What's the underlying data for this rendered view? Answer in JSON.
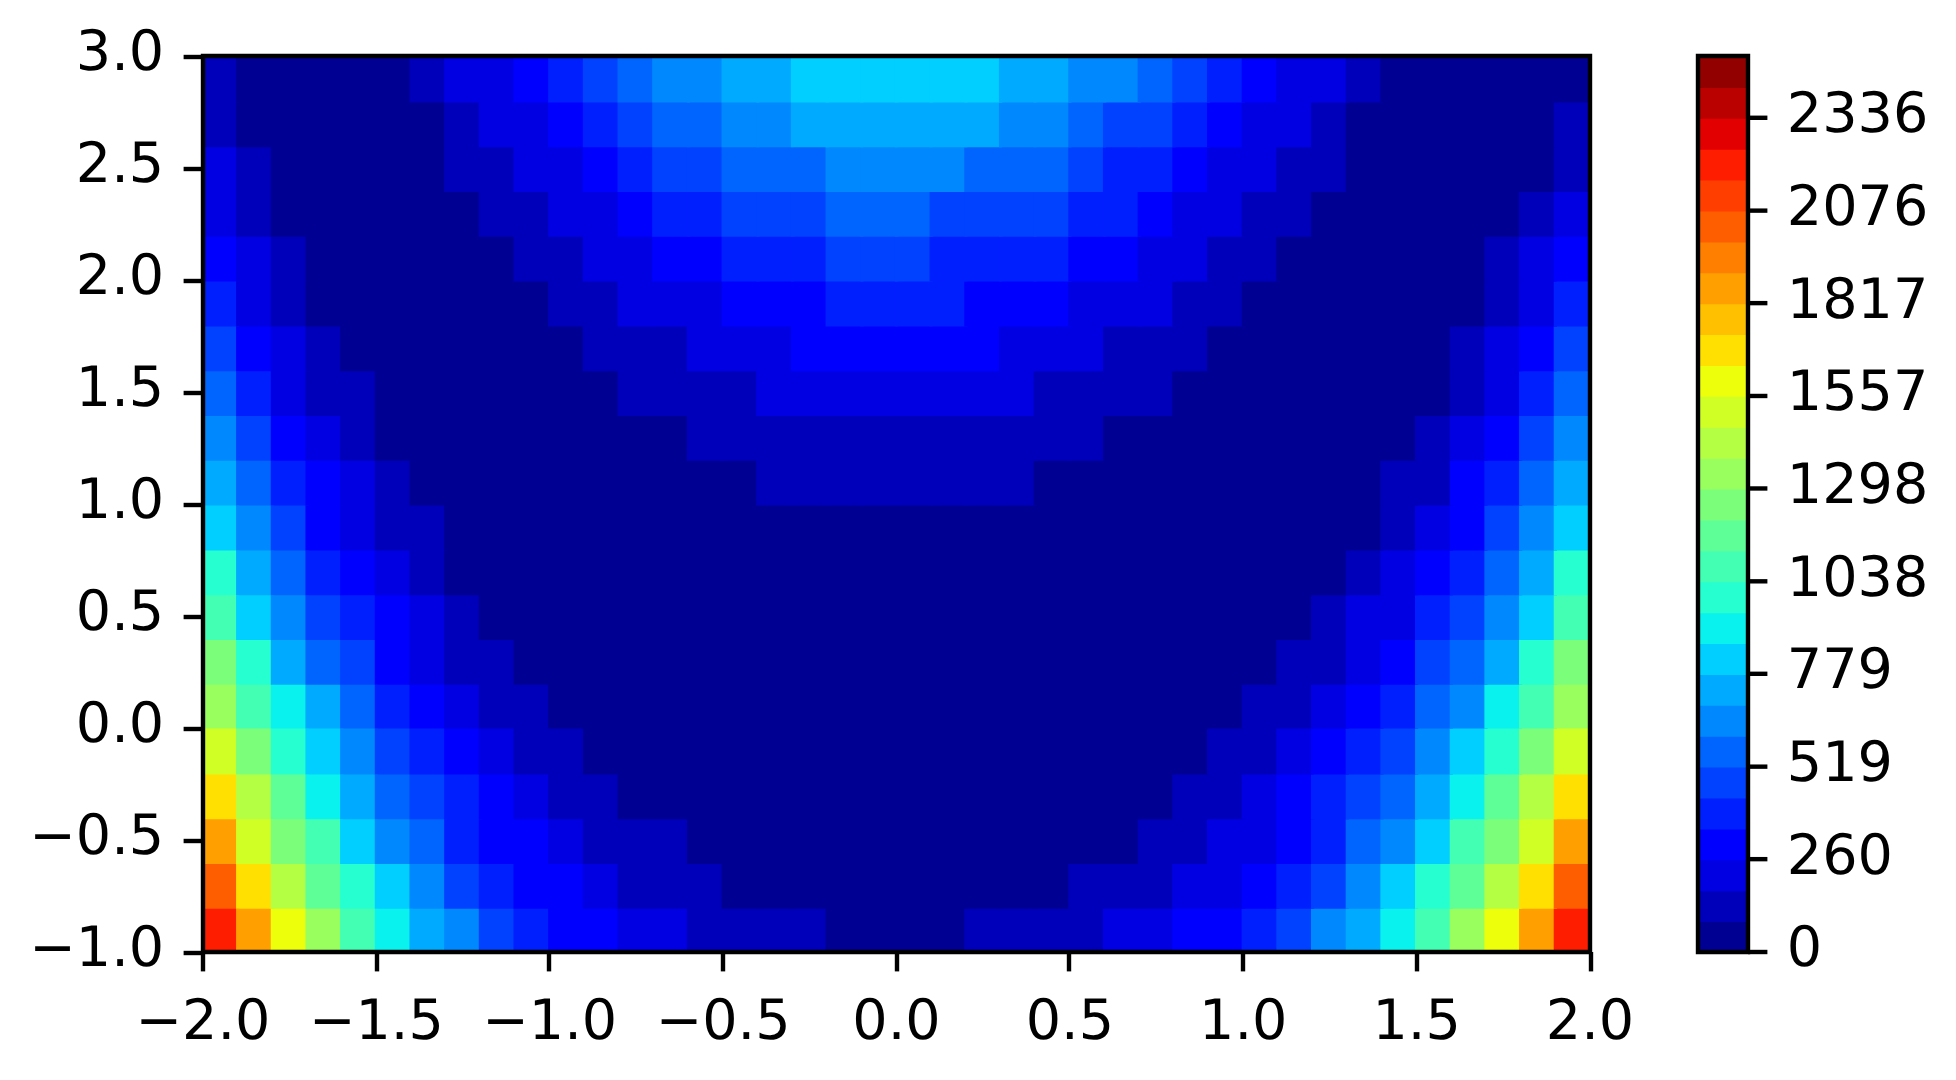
{
  "chart_data": {
    "type": "heatmap",
    "cells": [
      [
        90,
        35,
        10,
        10,
        31,
        70,
        122,
        184,
        253,
        327,
        403,
        478,
        549,
        617,
        677,
        730,
        773,
        807,
        829,
        841,
        840,
        829,
        806,
        772,
        728,
        675,
        614,
        546,
        474,
        399,
        323,
        249,
        179,
        116,
        64,
        25,
        4,
        3,
        28,
        82
      ],
      [
        130,
        60,
        21,
        7,
        15,
        42,
        83,
        134,
        194,
        259,
        327,
        394,
        460,
        521,
        577,
        626,
        666,
        697,
        718,
        729,
        729,
        718,
        696,
        665,
        624,
        575,
        519,
        457,
        391,
        323,
        255,
        190,
        129,
        77,
        36,
        9,
        0,
        14,
        53,
        122
      ],
      [
        178,
        93,
        39,
        12,
        7,
        22,
        51,
        93,
        143,
        200,
        259,
        319,
        378,
        434,
        485,
        530,
        567,
        596,
        615,
        625,
        625,
        615,
        595,
        566,
        528,
        483,
        432,
        375,
        316,
        255,
        195,
        139,
        88,
        46,
        16,
        1,
        5,
        32,
        86,
        171
      ],
      [
        234,
        134,
        66,
        25,
        8,
        10,
        28,
        59,
        100,
        148,
        199,
        252,
        305,
        355,
        401,
        442,
        476,
        502,
        520,
        529,
        529,
        519,
        501,
        475,
        440,
        399,
        353,
        302,
        249,
        195,
        143,
        96,
        54,
        23,
        4,
        1,
        18,
        59,
        127,
        227
      ],
      [
        299,
        183,
        100,
        46,
        16,
        6,
        13,
        34,
        65,
        104,
        147,
        193,
        239,
        284,
        326,
        362,
        393,
        417,
        433,
        441,
        441,
        432,
        416,
        391,
        360,
        323,
        282,
        236,
        190,
        143,
        100,
        60,
        29,
        8,
        0,
        9,
        39,
        93,
        176,
        291
      ],
      [
        371,
        240,
        143,
        75,
        32,
        10,
        6,
        16,
        38,
        68,
        103,
        142,
        182,
        221,
        258,
        290,
        318,
        339,
        354,
        361,
        361,
        353,
        338,
        316,
        288,
        255,
        218,
        179,
        139,
        100,
        64,
        33,
        11,
        1,
        4,
        26,
        68,
        136,
        233,
        363
      ],
      [
        451,
        305,
        193,
        112,
        56,
        22,
        7,
        7,
        19,
        40,
        67,
        99,
        132,
        166,
        198,
        226,
        251,
        270,
        283,
        289,
        289,
        282,
        269,
        249,
        225,
        196,
        163,
        129,
        96,
        64,
        36,
        14,
        2,
        2,
        16,
        50,
        105,
        186,
        297,
        443
      ],
      [
        539,
        378,
        252,
        156,
        88,
        42,
        16,
        5,
        8,
        20,
        40,
        64,
        91,
        119,
        146,
        170,
        192,
        208,
        220,
        225,
        225,
        219,
        207,
        190,
        169,
        144,
        116,
        88,
        60,
        36,
        16,
        3,
        0,
        11,
        37,
        82,
        150,
        245,
        370,
        531
      ],
      [
        635,
        459,
        318,
        209,
        128,
        70,
        33,
        12,
        5,
        8,
        20,
        37,
        57,
        80,
        102,
        123,
        140,
        155,
        165,
        169,
        169,
        164,
        154,
        139,
        121,
        100,
        77,
        54,
        33,
        16,
        4,
        0,
        7,
        27,
        65,
        122,
        203,
        311,
        451,
        627
      ],
      [
        739,
        548,
        393,
        270,
        176,
        107,
        58,
        26,
        10,
        4,
        8,
        18,
        32,
        49,
        66,
        83,
        97,
        109,
        117,
        122,
        121,
        117,
        108,
        96,
        81,
        64,
        46,
        29,
        14,
        4,
        0,
        5,
        21,
        52,
        101,
        170,
        264,
        386,
        540,
        731
      ],
      [
        851,
        644,
        475,
        339,
        232,
        151,
        91,
        49,
        22,
        8,
        4,
        7,
        14,
        26,
        38,
        51,
        62,
        72,
        78,
        82,
        81,
        78,
        71,
        61,
        49,
        36,
        23,
        11,
        3,
        0,
        4,
        18,
        44,
        85,
        145,
        226,
        333,
        468,
        637,
        843
      ],
      [
        971,
        749,
        566,
        416,
        296,
        203,
        132,
        79,
        43,
        20,
        8,
        3,
        5,
        10,
        18,
        27,
        35,
        42,
        47,
        50,
        50,
        47,
        41,
        34,
        25,
        16,
        8,
        2,
        0,
        4,
        16,
        39,
        74,
        126,
        197,
        290,
        409,
        559,
        742,
        963
      ],
      [
        1099,
        862,
        664,
        501,
        368,
        263,
        180,
        118,
        72,
        41,
        20,
        8,
        3,
        3,
        6,
        11,
        16,
        21,
        24,
        26,
        26,
        24,
        20,
        15,
        9,
        4,
        1,
        0,
        5,
        16,
        36,
        68,
        113,
        175,
        257,
        362,
        494,
        657,
        855,
        1092
      ],
      [
        1235,
        983,
        771,
        594,
        449,
        331,
        237,
        164,
        109,
        69,
        40,
        21,
        10,
        4,
        2,
        3,
        5,
        7,
        9,
        10,
        10,
        8,
        6,
        4,
        1,
        0,
        2,
        7,
        18,
        36,
        64,
        105,
        159,
        232,
        325,
        442,
        587,
        764,
        976,
        1228
      ],
      [
        1380,
        1112,
        885,
        695,
        537,
        407,
        302,
        219,
        154,
        105,
        68,
        42,
        24,
        13,
        7,
        3,
        2,
        2,
        2,
        2,
        2,
        1,
        1,
        0,
        1,
        4,
        11,
        21,
        39,
        64,
        101,
        149,
        214,
        297,
        401,
        530,
        688,
        878,
        1105,
        1372
      ],
      [
        1532,
        1249,
        1008,
        804,
        633,
        491,
        375,
        281,
        207,
        149,
        104,
        71,
        47,
        30,
        19,
        11,
        7,
        4,
        3,
        2,
        2,
        2,
        3,
        5,
        9,
        16,
        27,
        44,
        68,
        101,
        145,
        202,
        276,
        370,
        485,
        627,
        797,
        1001,
        1242,
        1524
      ],
      [
        1692,
        1394,
        1138,
        921,
        737,
        583,
        456,
        352,
        268,
        201,
        148,
        108,
        77,
        55,
        39,
        27,
        20,
        15,
        12,
        10,
        10,
        11,
        14,
        18,
        26,
        37,
        52,
        74,
        105,
        145,
        197,
        263,
        347,
        451,
        577,
        731,
        914,
        1131,
        1386,
        1684
      ],
      [
        1860,
        1547,
        1277,
        1045,
        849,
        683,
        545,
        430,
        337,
        261,
        201,
        153,
        116,
        88,
        67,
        51,
        41,
        33,
        29,
        26,
        26,
        28,
        32,
        39,
        50,
        65,
        85,
        113,
        149,
        197,
        257,
        332,
        425,
        540,
        678,
        843,
        1039,
        1270,
        1539,
        1852
      ],
      [
        2036,
        1708,
        1423,
        1178,
        969,
        791,
        642,
        517,
        414,
        329,
        261,
        206,
        162,
        129,
        103,
        84,
        69,
        60,
        54,
        50,
        50,
        53,
        59,
        68,
        82,
        101,
        126,
        159,
        202,
        257,
        325,
        409,
        512,
        636,
        786,
        963,
        1172,
        1416,
        1700,
        2028
      ],
      [
        2220,
        1877,
        1578,
        1319,
        1097,
        908,
        747,
        611,
        499,
        405,
        329,
        267,
        217,
        178,
        147,
        124,
        106,
        94,
        86,
        83,
        82,
        86,
        93,
        105,
        122,
        145,
        175,
        214,
        263,
        325,
        401,
        494,
        606,
        741,
        902,
        1091,
        1313,
        1571,
        1869,
        2212
      ]
    ],
    "xlim": [
      -2,
      2
    ],
    "ylim": [
      -1,
      3
    ],
    "xticks": [
      {
        "value": -2,
        "label": "−2.0"
      },
      {
        "value": -1.5,
        "label": "−1.5"
      },
      {
        "value": -1,
        "label": "−1.0"
      },
      {
        "value": -0.5,
        "label": "−0.5"
      },
      {
        "value": 0,
        "label": "0.0"
      },
      0.5,
      {
        "value": 1,
        "label": "1.0"
      },
      1.5,
      {
        "value": 2,
        "label": "2.0"
      }
    ],
    "yticks": [
      {
        "value": -1,
        "label": "−1.0"
      },
      {
        "value": -0.5,
        "label": "−0.5"
      },
      {
        "value": 0,
        "label": "0.0"
      },
      0.5,
      {
        "value": 1,
        "label": "1.0"
      },
      1.5,
      {
        "value": 2,
        "label": "2.0"
      },
      2.5,
      {
        "value": 3,
        "label": "3.0"
      }
    ],
    "clim": [
      0,
      2509
    ],
    "cticks": [
      0,
      260,
      519,
      779,
      1038,
      1298,
      1557,
      1817,
      2076,
      2336
    ]
  }
}
